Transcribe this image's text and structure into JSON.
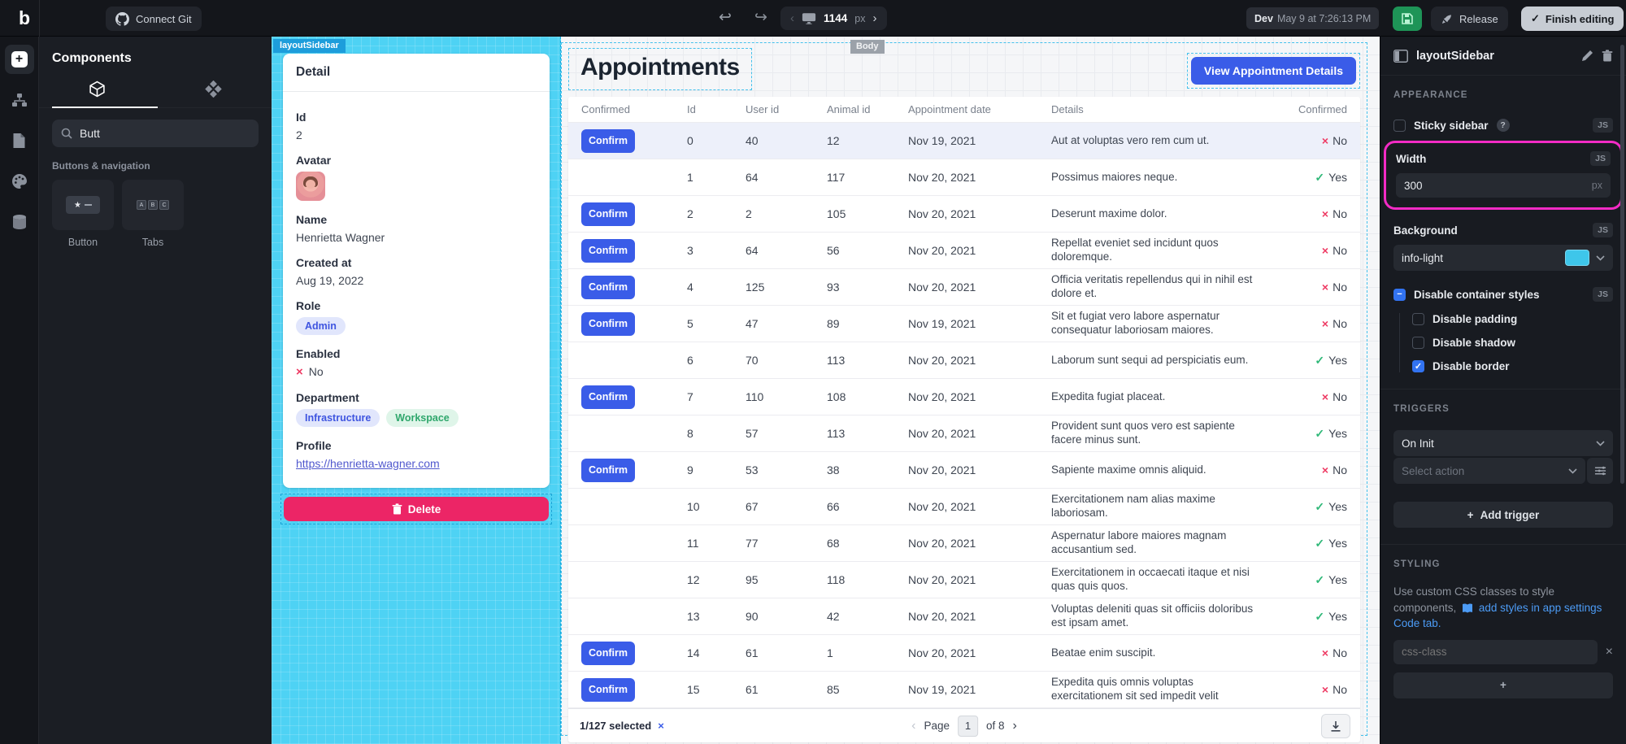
{
  "colors": {
    "accent_blue": "#3a5ce8",
    "delete_pink": "#ec2566",
    "selection_cyan": "#4ed2f4",
    "highlight_magenta": "#f32bc5",
    "success_green": "#2fb878",
    "error_red": "#ee3a63",
    "info_light_swatch": "#3ec6ea",
    "save_green": "#1e9457"
  },
  "topbar": {
    "logo": "b",
    "connect_git_label": "Connect Git",
    "device": {
      "value": "1144",
      "unit": "px"
    },
    "env": {
      "label": "Dev",
      "timestamp": "May 9 at 7:26:13 PM"
    },
    "release_label": "Release",
    "finish_label": "Finish editing"
  },
  "components": {
    "title": "Components",
    "search_value": "Butt",
    "section_label": "Buttons & navigation",
    "items": [
      {
        "label": "Button"
      },
      {
        "label": "Tabs"
      }
    ]
  },
  "canvas": {
    "sidebar_tag": "layoutSidebar",
    "body_tag": "Body",
    "detail": {
      "title": "Detail",
      "fields": [
        {
          "label": "Id",
          "type": "text",
          "value": "2"
        },
        {
          "label": "Avatar",
          "type": "avatar"
        },
        {
          "label": "Name",
          "type": "text",
          "value": "Henrietta Wagner"
        },
        {
          "label": "Created at",
          "type": "text",
          "value": "Aug 19, 2022"
        },
        {
          "label": "Role",
          "type": "badges",
          "badges": [
            {
              "text": "Admin",
              "color": "blue"
            }
          ]
        },
        {
          "label": "Enabled",
          "type": "bool",
          "value": "No"
        },
        {
          "label": "Department",
          "type": "badges",
          "badges": [
            {
              "text": "Infrastructure",
              "color": "blue"
            },
            {
              "text": "Workspace",
              "color": "green"
            }
          ]
        },
        {
          "label": "Profile",
          "type": "link",
          "value": "https://henrietta-wagner.com"
        }
      ],
      "delete_label": "Delete"
    },
    "appointments": {
      "title": "Appointments",
      "cta_label": "View Appointment Details",
      "confirm_label": "Confirm",
      "headers": [
        "Confirmed",
        "Id",
        "User id",
        "Animal id",
        "Appointment date",
        "Details",
        "Confirmed"
      ],
      "rows": [
        {
          "confirm": true,
          "id": "0",
          "user": "40",
          "animal": "12",
          "date": "Nov 19, 2021",
          "details": "Aut at voluptas vero rem cum ut.",
          "confirmed": "No",
          "selected": true
        },
        {
          "confirm": false,
          "id": "1",
          "user": "64",
          "animal": "117",
          "date": "Nov 20, 2021",
          "details": "Possimus maiores neque.",
          "confirmed": "Yes"
        },
        {
          "confirm": true,
          "id": "2",
          "user": "2",
          "animal": "105",
          "date": "Nov 20, 2021",
          "details": "Deserunt maxime dolor.",
          "confirmed": "No"
        },
        {
          "confirm": true,
          "id": "3",
          "user": "64",
          "animal": "56",
          "date": "Nov 20, 2021",
          "details": "Repellat eveniet sed incidunt quos doloremque.",
          "confirmed": "No"
        },
        {
          "confirm": true,
          "id": "4",
          "user": "125",
          "animal": "93",
          "date": "Nov 20, 2021",
          "details": "Officia veritatis repellendus qui in nihil est dolore et.",
          "confirmed": "No"
        },
        {
          "confirm": true,
          "id": "5",
          "user": "47",
          "animal": "89",
          "date": "Nov 19, 2021",
          "details": "Sit et fugiat vero labore aspernatur consequatur laboriosam maiores.",
          "confirmed": "No"
        },
        {
          "confirm": false,
          "id": "6",
          "user": "70",
          "animal": "113",
          "date": "Nov 20, 2021",
          "details": "Laborum sunt sequi ad perspiciatis eum.",
          "confirmed": "Yes"
        },
        {
          "confirm": true,
          "id": "7",
          "user": "110",
          "animal": "108",
          "date": "Nov 20, 2021",
          "details": "Expedita fugiat placeat.",
          "confirmed": "No"
        },
        {
          "confirm": false,
          "id": "8",
          "user": "57",
          "animal": "113",
          "date": "Nov 20, 2021",
          "details": "Provident sunt quos vero est sapiente facere minus sunt.",
          "confirmed": "Yes"
        },
        {
          "confirm": true,
          "id": "9",
          "user": "53",
          "animal": "38",
          "date": "Nov 20, 2021",
          "details": "Sapiente maxime omnis aliquid.",
          "confirmed": "No"
        },
        {
          "confirm": false,
          "id": "10",
          "user": "67",
          "animal": "66",
          "date": "Nov 20, 2021",
          "details": "Exercitationem nam alias maxime laboriosam.",
          "confirmed": "Yes"
        },
        {
          "confirm": false,
          "id": "11",
          "user": "77",
          "animal": "68",
          "date": "Nov 20, 2021",
          "details": "Aspernatur labore maiores magnam accusantium sed.",
          "confirmed": "Yes"
        },
        {
          "confirm": false,
          "id": "12",
          "user": "95",
          "animal": "118",
          "date": "Nov 20, 2021",
          "details": "Exercitationem in occaecati itaque et nisi quas quis quos.",
          "confirmed": "Yes"
        },
        {
          "confirm": false,
          "id": "13",
          "user": "90",
          "animal": "42",
          "date": "Nov 20, 2021",
          "details": "Voluptas deleniti quas sit officiis doloribus est ipsam amet.",
          "confirmed": "Yes"
        },
        {
          "confirm": true,
          "id": "14",
          "user": "61",
          "animal": "1",
          "date": "Nov 20, 2021",
          "details": "Beatae enim suscipit.",
          "confirmed": "No"
        },
        {
          "confirm": true,
          "id": "15",
          "user": "61",
          "animal": "85",
          "date": "Nov 19, 2021",
          "details": "Expedita quis omnis voluptas exercitationem sit sed impedit velit",
          "confirmed": "No"
        }
      ],
      "footer": {
        "selected": "1/127 selected",
        "page_label": "Page",
        "page_value": "1",
        "of_label": "of 8"
      }
    }
  },
  "settings": {
    "title": "layoutSidebar",
    "appearance": {
      "label": "APPEARANCE",
      "js_label": "JS",
      "sticky_label": "Sticky sidebar",
      "width": {
        "label": "Width",
        "value": "300",
        "unit": "px"
      },
      "background": {
        "label": "Background",
        "value": "info-light"
      },
      "container_label": "Disable container styles",
      "children": [
        {
          "label": "Disable padding",
          "checked": false
        },
        {
          "label": "Disable shadow",
          "checked": false
        },
        {
          "label": "Disable border",
          "checked": true
        }
      ]
    },
    "triggers": {
      "label": "TRIGGERS",
      "event_value": "On Init",
      "action_placeholder": "Select action",
      "add_label": "Add trigger"
    },
    "styling": {
      "label": "STYLING",
      "hint_prefix": "Use custom CSS classes to style components,",
      "hint_link": "add styles in app settings Code tab.",
      "input_placeholder": "css-class"
    }
  }
}
